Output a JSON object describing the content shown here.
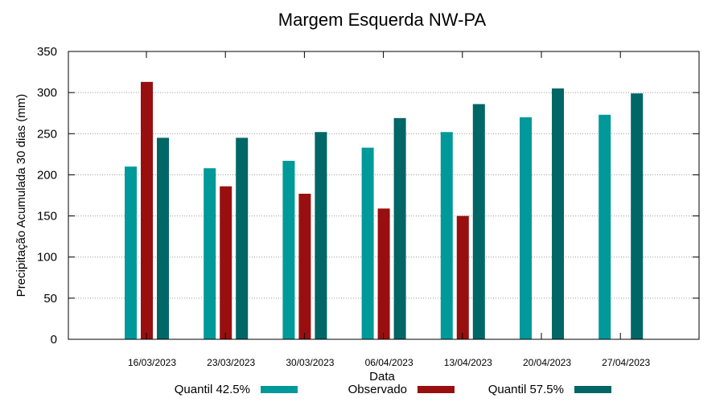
{
  "chart_data": {
    "type": "bar",
    "title": "Margem Esquerda NW-PA",
    "xlabel": "Data",
    "ylabel": "Precipitação Acumulada 30 dias (mm)",
    "ylim": [
      0,
      350
    ],
    "yticks": [
      0,
      50,
      100,
      150,
      200,
      250,
      300,
      350
    ],
    "grid": true,
    "legend_position": "bottom",
    "categories": [
      "16/03/2023",
      "23/03/2023",
      "30/03/2023",
      "06/04/2023",
      "13/04/2023",
      "20/04/2023",
      "27/04/2023"
    ],
    "series": [
      {
        "name": "Quantil 42.5%",
        "color": "#009999",
        "values": [
          210,
          208,
          217,
          233,
          252,
          270,
          273
        ]
      },
      {
        "name": "Observado",
        "color": "#990f0f",
        "values": [
          313,
          186,
          177,
          159,
          150,
          null,
          null
        ]
      },
      {
        "name": "Quantil 57.5%",
        "color": "#006666",
        "values": [
          245,
          245,
          252,
          269,
          286,
          305,
          299
        ]
      }
    ]
  }
}
